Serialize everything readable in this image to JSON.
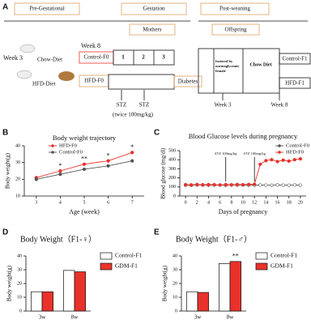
{
  "diagram": {
    "panel_label": "A",
    "phases": [
      "Pre-Gestational",
      "Gestation",
      "Post-weaning"
    ],
    "groups": [
      "Mothers",
      "Offspring"
    ],
    "week8": "Week 8",
    "week3": "Week 3",
    "diets": [
      "Chow-Diet",
      "HFD-Diet"
    ],
    "f0": [
      "Control-F0",
      "HFD-F0"
    ],
    "weeks": [
      "1",
      "2",
      "3"
    ],
    "diabetes": "Diabetes",
    "stz": [
      "STZ",
      "STZ"
    ],
    "stz_dose": "(twice 100mg/kg)",
    "foster_note": [
      "fostered by",
      "normoglycemic",
      "female"
    ],
    "chow": "Chow Diet",
    "f1": [
      "Control-F1",
      "HFD-F1"
    ],
    "post_weeks": [
      "Week 3",
      "Week 8"
    ]
  },
  "panel_labels": [
    "B",
    "C",
    "D",
    "E"
  ],
  "chart_data": [
    {
      "type": "line",
      "title": "Body weight trajectory",
      "x_label": "Age (week)",
      "y_label": "Body weight(g)",
      "x": [
        3,
        4,
        5,
        6,
        7
      ],
      "xlim": [
        2.5,
        7.5
      ],
      "xticks": [
        3,
        4,
        5,
        6,
        7
      ],
      "ylim": [
        10,
        40
      ],
      "yticks": [
        10,
        20,
        30,
        40
      ],
      "legend": "upper left",
      "series": [
        {
          "name": "HFD-F0",
          "color": "#e8322b",
          "values": [
            21,
            25,
            29,
            31,
            36
          ],
          "significance": [
            null,
            "*",
            "**",
            "*",
            "*"
          ]
        },
        {
          "name": "Control-F0",
          "color": "#555555",
          "values": [
            20,
            23,
            26,
            28,
            31
          ]
        }
      ]
    },
    {
      "type": "line",
      "title": "Blood Glucose levels during pregnancy",
      "x_label": "Days of pregnancy",
      "y_label": "Blood glucose (mg/dl)",
      "x": [
        0,
        1,
        2,
        3,
        4,
        5,
        6,
        7,
        8,
        9,
        10,
        11,
        12,
        13,
        14,
        15,
        16,
        17,
        18,
        19,
        20
      ],
      "xlim": [
        -1,
        21
      ],
      "xticks": [
        0,
        2,
        4,
        6,
        8,
        10,
        12,
        14,
        16,
        18,
        20
      ],
      "ylim": [
        0,
        500
      ],
      "yticks": [
        0,
        100,
        200,
        300,
        400,
        500
      ],
      "legend": "upper right",
      "annotations": [
        {
          "text": "STZ 100mg/kg",
          "x": 7
        },
        {
          "text": "STZ 100mg/kg",
          "x": 12
        }
      ],
      "series": [
        {
          "name": "Control-F0",
          "color": "#555555",
          "values": [
            120,
            118,
            122,
            120,
            119,
            121,
            120,
            118,
            122,
            120,
            121,
            119,
            120,
            121,
            120,
            118,
            122,
            120,
            119,
            121,
            120
          ]
        },
        {
          "name": "HFD-F0",
          "color": "#e8322b",
          "values": [
            125,
            123,
            127,
            124,
            126,
            125,
            122,
            126,
            124,
            127,
            125,
            128,
            130,
            350,
            390,
            400,
            380,
            395,
            385,
            400,
            410
          ]
        }
      ]
    },
    {
      "type": "bar",
      "title": "Body Weight（F1-♀）",
      "y_label": "Body weight(g)",
      "categories": [
        "3w",
        "8w"
      ],
      "ylim": [
        0,
        40
      ],
      "yticks": [
        0,
        10,
        20,
        30,
        40
      ],
      "legend": "right",
      "series": [
        {
          "name": "Control-F1",
          "color": "#ffffff",
          "values": [
            14,
            29.5
          ]
        },
        {
          "name": "GDM-F1",
          "color": "#e8322b",
          "values": [
            14,
            28.5
          ]
        }
      ]
    },
    {
      "type": "bar",
      "title": "Body Weight（F1-♂）",
      "y_label": "Body weight(g)",
      "categories": [
        "3w",
        "8w"
      ],
      "ylim": [
        0,
        40
      ],
      "yticks": [
        0,
        10,
        20,
        30,
        40
      ],
      "legend": "right",
      "series": [
        {
          "name": "Control-F1",
          "color": "#ffffff",
          "values": [
            14,
            34.5
          ]
        },
        {
          "name": "GDM-F1",
          "color": "#e8322b",
          "values": [
            13.5,
            36
          ],
          "significance": [
            null,
            "**"
          ]
        }
      ]
    }
  ]
}
